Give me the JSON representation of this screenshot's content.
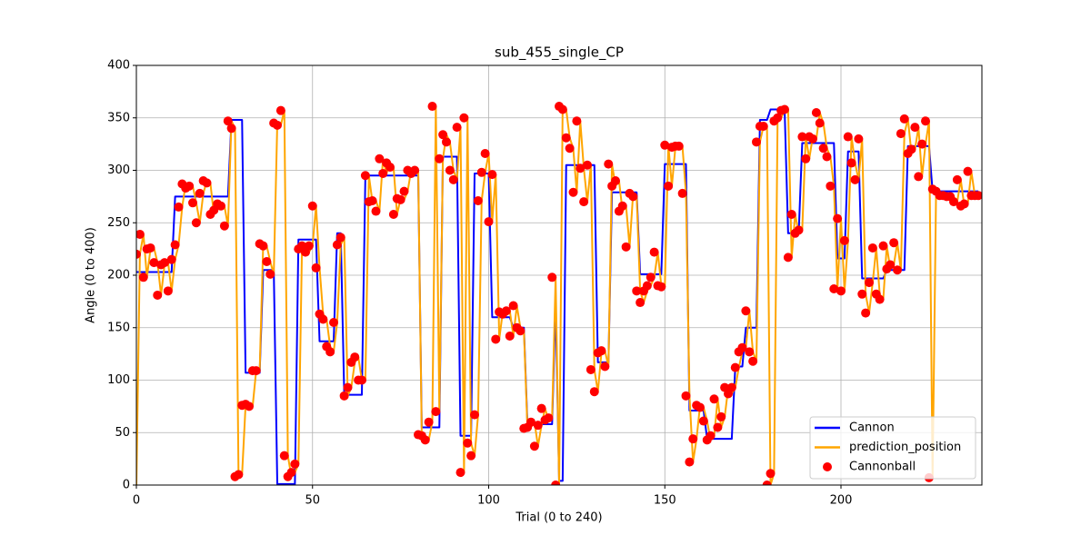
{
  "chart_data": {
    "type": "line",
    "title": "sub_455_single_CP",
    "x_label": "Trial (0 to 240)",
    "y_label": "Angle (0 to 400)",
    "xlim": [
      0,
      240
    ],
    "ylim": [
      0,
      400
    ],
    "xticks": [
      0,
      50,
      100,
      150,
      200
    ],
    "yticks": [
      0,
      50,
      100,
      150,
      200,
      250,
      300,
      350,
      400
    ],
    "grid": true,
    "legend_loc": "lower right",
    "x": [
      0,
      1,
      2,
      3,
      4,
      5,
      6,
      7,
      8,
      9,
      10,
      11,
      12,
      13,
      14,
      15,
      16,
      17,
      18,
      19,
      20,
      21,
      22,
      23,
      24,
      25,
      26,
      27,
      28,
      29,
      30,
      31,
      32,
      33,
      34,
      35,
      36,
      37,
      38,
      39,
      40,
      41,
      42,
      43,
      44,
      45,
      46,
      47,
      48,
      49,
      50,
      51,
      52,
      53,
      54,
      55,
      56,
      57,
      58,
      59,
      60,
      61,
      62,
      63,
      64,
      65,
      66,
      67,
      68,
      69,
      70,
      71,
      72,
      73,
      74,
      75,
      76,
      77,
      78,
      79,
      80,
      81,
      82,
      83,
      84,
      85,
      86,
      87,
      88,
      89,
      90,
      91,
      92,
      93,
      94,
      95,
      96,
      97,
      98,
      99,
      100,
      101,
      102,
      103,
      104,
      105,
      106,
      107,
      108,
      109,
      110,
      111,
      112,
      113,
      114,
      115,
      116,
      117,
      118,
      119,
      120,
      121,
      122,
      123,
      124,
      125,
      126,
      127,
      128,
      129,
      130,
      131,
      132,
      133,
      134,
      135,
      136,
      137,
      138,
      139,
      140,
      141,
      142,
      143,
      144,
      145,
      146,
      147,
      148,
      149,
      150,
      151,
      152,
      153,
      154,
      155,
      156,
      157,
      158,
      159,
      160,
      161,
      162,
      163,
      164,
      165,
      166,
      167,
      168,
      169,
      170,
      171,
      172,
      173,
      174,
      175,
      176,
      177,
      178,
      179,
      180,
      181,
      182,
      183,
      184,
      185,
      186,
      187,
      188,
      189,
      190,
      191,
      192,
      193,
      194,
      195,
      196,
      197,
      198,
      199,
      200,
      201,
      202,
      203,
      204,
      205,
      206,
      207,
      208,
      209,
      210,
      211,
      212,
      213,
      214,
      215,
      216,
      217,
      218,
      219,
      220,
      221,
      222,
      223,
      224,
      225,
      226,
      227,
      228,
      229,
      230,
      231,
      232,
      233,
      234,
      235,
      236,
      237,
      238,
      239
    ],
    "series": [
      {
        "name": "Cannon",
        "type": "line",
        "color": "#0000ff",
        "values": [
          203,
          203,
          203,
          203,
          203,
          203,
          203,
          203,
          203,
          203,
          203,
          275,
          275,
          275,
          275,
          275,
          275,
          275,
          275,
          275,
          275,
          275,
          275,
          275,
          275,
          275,
          275,
          348,
          348,
          348,
          348,
          107,
          107,
          107,
          107,
          107,
          205,
          205,
          205,
          205,
          1,
          1,
          1,
          1,
          1,
          1,
          234,
          234,
          234,
          234,
          234,
          234,
          137,
          137,
          137,
          137,
          137,
          240,
          240,
          86,
          86,
          86,
          86,
          86,
          86,
          295,
          295,
          295,
          295,
          295,
          295,
          295,
          295,
          295,
          295,
          295,
          295,
          295,
          295,
          295,
          295,
          55,
          55,
          55,
          55,
          55,
          55,
          313,
          313,
          313,
          313,
          313,
          47,
          47,
          47,
          47,
          297,
          297,
          297,
          297,
          297,
          160,
          160,
          160,
          160,
          160,
          160,
          150,
          150,
          150,
          150,
          58,
          58,
          58,
          58,
          58,
          58,
          58,
          58,
          174,
          4,
          4,
          305,
          305,
          305,
          305,
          305,
          305,
          305,
          305,
          305,
          117,
          117,
          117,
          117,
          279,
          279,
          279,
          279,
          279,
          279,
          279,
          279,
          201,
          201,
          201,
          201,
          201,
          201,
          201,
          306,
          306,
          306,
          306,
          306,
          306,
          306,
          71,
          71,
          71,
          71,
          71,
          44,
          44,
          44,
          44,
          44,
          44,
          44,
          44,
          113,
          113,
          113,
          150,
          150,
          150,
          150,
          348,
          348,
          348,
          358,
          358,
          358,
          358,
          358,
          240,
          240,
          240,
          240,
          326,
          326,
          326,
          326,
          326,
          326,
          326,
          326,
          326,
          326,
          216,
          216,
          216,
          318,
          318,
          318,
          318,
          197,
          197,
          197,
          197,
          197,
          197,
          197,
          205,
          205,
          205,
          205,
          205,
          205,
          323,
          323,
          323,
          323,
          323,
          323,
          323,
          280,
          280,
          280,
          280,
          280,
          280,
          280,
          280,
          280,
          280,
          280,
          280,
          280,
          280
        ]
      },
      {
        "name": "prediction_position",
        "type": "line",
        "color": "#ffa500",
        "values": [
          0,
          220,
          239,
          198,
          225,
          226,
          212,
          181,
          210,
          212,
          185,
          215,
          229,
          265,
          287,
          283,
          285,
          269,
          250,
          278,
          290,
          288,
          258,
          262,
          268,
          266,
          247,
          347,
          340,
          8,
          10,
          76,
          77,
          75,
          109,
          109,
          230,
          228,
          213,
          201,
          345,
          343,
          357,
          28,
          8,
          12,
          20,
          225,
          228,
          222,
          228,
          266,
          207,
          163,
          158,
          132,
          127,
          155,
          229,
          236,
          85,
          93,
          117,
          122,
          100,
          100,
          295,
          270,
          271,
          261,
          311,
          297,
          307,
          303,
          258,
          273,
          272,
          280,
          300,
          297,
          300,
          48,
          47,
          43,
          60,
          361,
          70,
          311,
          334,
          327,
          300,
          291,
          341,
          12,
          350,
          40,
          28,
          67,
          271,
          298,
          316,
          251,
          296,
          139,
          165,
          163,
          166,
          142,
          171,
          150,
          147,
          54,
          55,
          60,
          37,
          57,
          73,
          62,
          64,
          198,
          0,
          361,
          358,
          331,
          321,
          279,
          347,
          302,
          270,
          305,
          110,
          89,
          126,
          128,
          113,
          306,
          285,
          290,
          261,
          266,
          227,
          278,
          275,
          185,
          174,
          185,
          190,
          198,
          222,
          190,
          189,
          324,
          285,
          322,
          323,
          323,
          278,
          85,
          22,
          44,
          76,
          74,
          61,
          43,
          47,
          82,
          55,
          65,
          93,
          87,
          93,
          112,
          127,
          131,
          166,
          127,
          118,
          327,
          342,
          342,
          0,
          11,
          347,
          350,
          357,
          358,
          217,
          258,
          240,
          243,
          332,
          311,
          332,
          330,
          355,
          345,
          321,
          313,
          285,
          187,
          254,
          185,
          233,
          332,
          307,
          291,
          330,
          182,
          164,
          193,
          226,
          182,
          177,
          228,
          206,
          210,
          231,
          205,
          335,
          349,
          316,
          320,
          341,
          294,
          325,
          347,
          7,
          282,
          280,
          276,
          276,
          275,
          275,
          270,
          291,
          266,
          268,
          299,
          276,
          276
        ]
      },
      {
        "name": "Cannonball",
        "type": "scatter",
        "color": "#ff0000",
        "values": [
          220,
          239,
          198,
          225,
          226,
          212,
          181,
          210,
          212,
          185,
          215,
          229,
          265,
          287,
          283,
          285,
          269,
          250,
          278,
          290,
          288,
          258,
          262,
          268,
          266,
          247,
          347,
          340,
          8,
          10,
          76,
          77,
          75,
          109,
          109,
          230,
          228,
          213,
          201,
          345,
          343,
          357,
          28,
          8,
          12,
          20,
          225,
          228,
          222,
          228,
          266,
          207,
          163,
          158,
          132,
          127,
          155,
          229,
          236,
          85,
          93,
          117,
          122,
          100,
          100,
          295,
          270,
          271,
          261,
          311,
          297,
          307,
          303,
          258,
          273,
          272,
          280,
          300,
          297,
          300,
          48,
          47,
          43,
          60,
          361,
          70,
          311,
          334,
          327,
          300,
          291,
          341,
          12,
          350,
          40,
          28,
          67,
          271,
          298,
          316,
          251,
          296,
          139,
          165,
          163,
          166,
          142,
          171,
          150,
          147,
          54,
          55,
          60,
          37,
          57,
          73,
          62,
          64,
          198,
          0,
          361,
          358,
          331,
          321,
          279,
          347,
          302,
          270,
          305,
          110,
          89,
          126,
          128,
          113,
          306,
          285,
          290,
          261,
          266,
          227,
          278,
          275,
          185,
          174,
          185,
          190,
          198,
          222,
          190,
          189,
          324,
          285,
          322,
          323,
          323,
          278,
          85,
          22,
          44,
          76,
          74,
          61,
          43,
          47,
          82,
          55,
          65,
          93,
          87,
          93,
          112,
          127,
          131,
          166,
          127,
          118,
          327,
          342,
          342,
          0,
          11,
          347,
          350,
          357,
          358,
          217,
          258,
          240,
          243,
          332,
          311,
          332,
          330,
          355,
          345,
          321,
          313,
          285,
          187,
          254,
          185,
          233,
          332,
          307,
          291,
          330,
          182,
          164,
          193,
          226,
          182,
          177,
          228,
          206,
          210,
          231,
          205,
          335,
          349,
          316,
          320,
          341,
          294,
          325,
          347,
          7,
          282,
          280,
          276,
          276,
          275,
          275,
          270,
          291,
          266,
          268,
          299,
          276,
          276,
          276
        ]
      }
    ]
  }
}
